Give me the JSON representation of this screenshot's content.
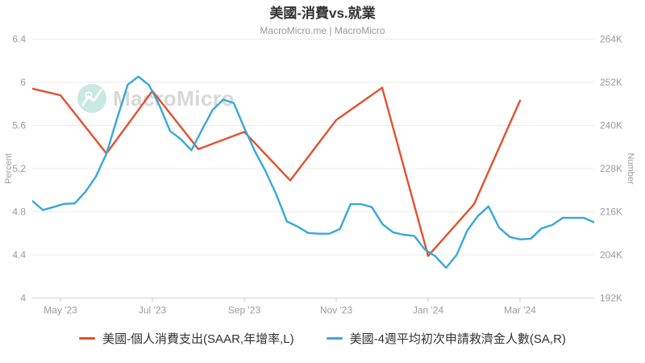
{
  "header": {
    "title": "美國-消費vs.就業",
    "subtitle": "MacroMicro.me | MacroMicro"
  },
  "watermark": {
    "text": "MacroMicro",
    "circle_color": "#c9e9e1",
    "text_color": "#d8d8d8"
  },
  "chart_data": {
    "type": "line",
    "title": "美國-消費vs.就業",
    "grid": "horizontal-only",
    "legend_position": "bottom",
    "left_axis": {
      "label": "Percent",
      "min": 4,
      "max": 6.4,
      "tick_values": [
        6.4,
        6,
        5.6,
        5.2,
        4.8,
        4.4,
        4
      ],
      "tick_labels": [
        "6.4",
        "6",
        "5.6",
        "5.2",
        "4.8",
        "4.4",
        "4"
      ]
    },
    "right_axis": {
      "label": "Number",
      "min": 192,
      "max": 264,
      "unit": "K",
      "tick_values": [
        264,
        252,
        240,
        228,
        216,
        204,
        192
      ],
      "tick_labels": [
        "264K",
        "252K",
        "240K",
        "228K",
        "216K",
        "204K",
        "192K"
      ]
    },
    "x_axis": {
      "tick_labels": [
        "May '23",
        "Jul '23",
        "Sep '23",
        "Nov '23",
        "Jan '24",
        "Mar '24"
      ],
      "tick_month_index": [
        1,
        3,
        5,
        7,
        9,
        11
      ]
    },
    "series": [
      {
        "name": "美國-個人消費支出(SAAR,年增率,L)",
        "color": "#e2512e",
        "axis": "left",
        "unit": "percent",
        "frequency": "monthly",
        "x0": 18,
        "dx": 57,
        "labels": [
          "Apr '23",
          "May '23",
          "Jun '23",
          "Jul '23",
          "Aug '23",
          "Sep '23",
          "Oct '23",
          "Nov '23",
          "Dec '23",
          "Jan '24",
          "Feb '24",
          "Mar '24"
        ],
        "values": [
          5.98,
          5.88,
          5.34,
          5.92,
          5.38,
          5.54,
          5.09,
          5.65,
          5.95,
          4.39,
          4.87,
          5.83
        ]
      },
      {
        "name": "美國-4週平均初次申請救濟金人數(SA,R)",
        "color": "#38a8d9",
        "axis": "right",
        "unit": "K persons",
        "frequency": "weekly",
        "x0": 40,
        "dx": 13.16,
        "start_label": "Apr '23",
        "end_label": "Apr '24",
        "values": [
          219.0,
          216.5,
          217.3,
          218.2,
          218.3,
          221.5,
          225.8,
          232.2,
          242.0,
          251.3,
          253.6,
          251.2,
          245.5,
          238.4,
          236.2,
          233.1,
          238.8,
          244.3,
          247.2,
          246.2,
          239.2,
          232.7,
          227.2,
          220.8,
          213.3,
          211.9,
          210.1,
          209.9,
          209.9,
          211.2,
          218.1,
          218.1,
          217.3,
          212.6,
          210.3,
          209.6,
          209.3,
          205.5,
          203.6,
          200.4,
          204.0,
          210.8,
          214.8,
          217.5,
          211.6,
          209.0,
          208.3,
          208.5,
          211.4,
          212.3,
          214.3,
          214.3,
          214.3,
          213.0
        ]
      }
    ]
  },
  "legend": {
    "items": [
      {
        "label": "美國-個人消費支出(SAAR,年增率,L)",
        "color": "#e2512e"
      },
      {
        "label": "美國-4週平均初次申請救濟金人數(SA,R)",
        "color": "#38a8d9"
      }
    ]
  }
}
